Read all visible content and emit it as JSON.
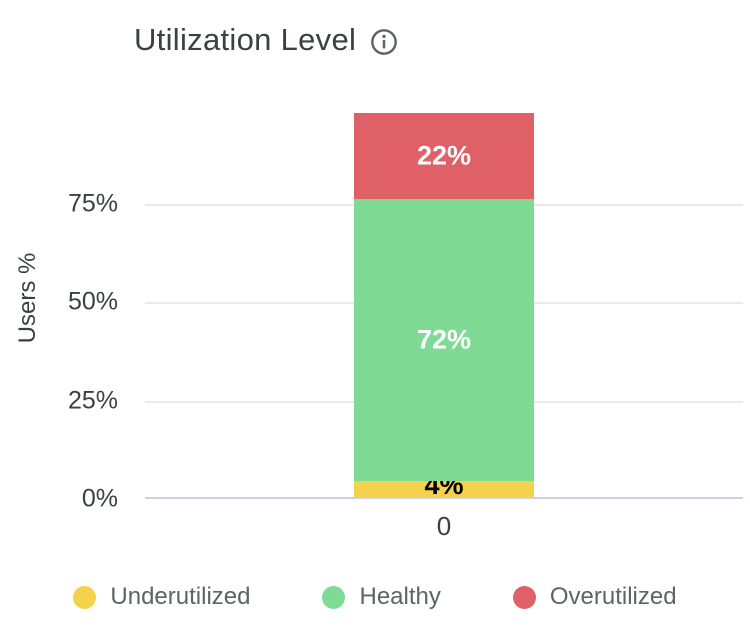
{
  "header": {
    "title": "Utilization Level",
    "info_icon": "info-icon",
    "title_color": "#3c4043",
    "icon_color": "#5f6368"
  },
  "chart_data": {
    "type": "bar",
    "stacked": true,
    "title": "Utilization Level",
    "xlabel": "",
    "ylabel": "Users %",
    "categories": [
      "0"
    ],
    "series": [
      {
        "name": "Underutilized",
        "values": [
          4
        ],
        "data_label": "4%",
        "color": "#F5D24B",
        "label_color": "#000000"
      },
      {
        "name": "Healthy",
        "values": [
          72
        ],
        "data_label": "72%",
        "color": "#7FDA93",
        "label_color": "#FFFFFF"
      },
      {
        "name": "Overutilized",
        "values": [
          22
        ],
        "data_label": "22%",
        "color": "#DF6067",
        "label_color": "#FFFFFF"
      }
    ],
    "ylim": [
      0,
      100
    ],
    "yticks": [
      {
        "label": "0%",
        "value": 0
      },
      {
        "label": "25%",
        "value": 25
      },
      {
        "label": "50%",
        "value": 50
      },
      {
        "label": "75%",
        "value": 75
      }
    ],
    "grid": true,
    "gridline_color": "#e9eaec",
    "baseline_color": "#c8d2e6",
    "legend_position": "bottom"
  },
  "legend": {
    "items": [
      {
        "label": "Underutilized",
        "color": "#F5D24B"
      },
      {
        "label": "Healthy",
        "color": "#7FDA93"
      },
      {
        "label": "Overutilized",
        "color": "#DF6067"
      }
    ]
  }
}
